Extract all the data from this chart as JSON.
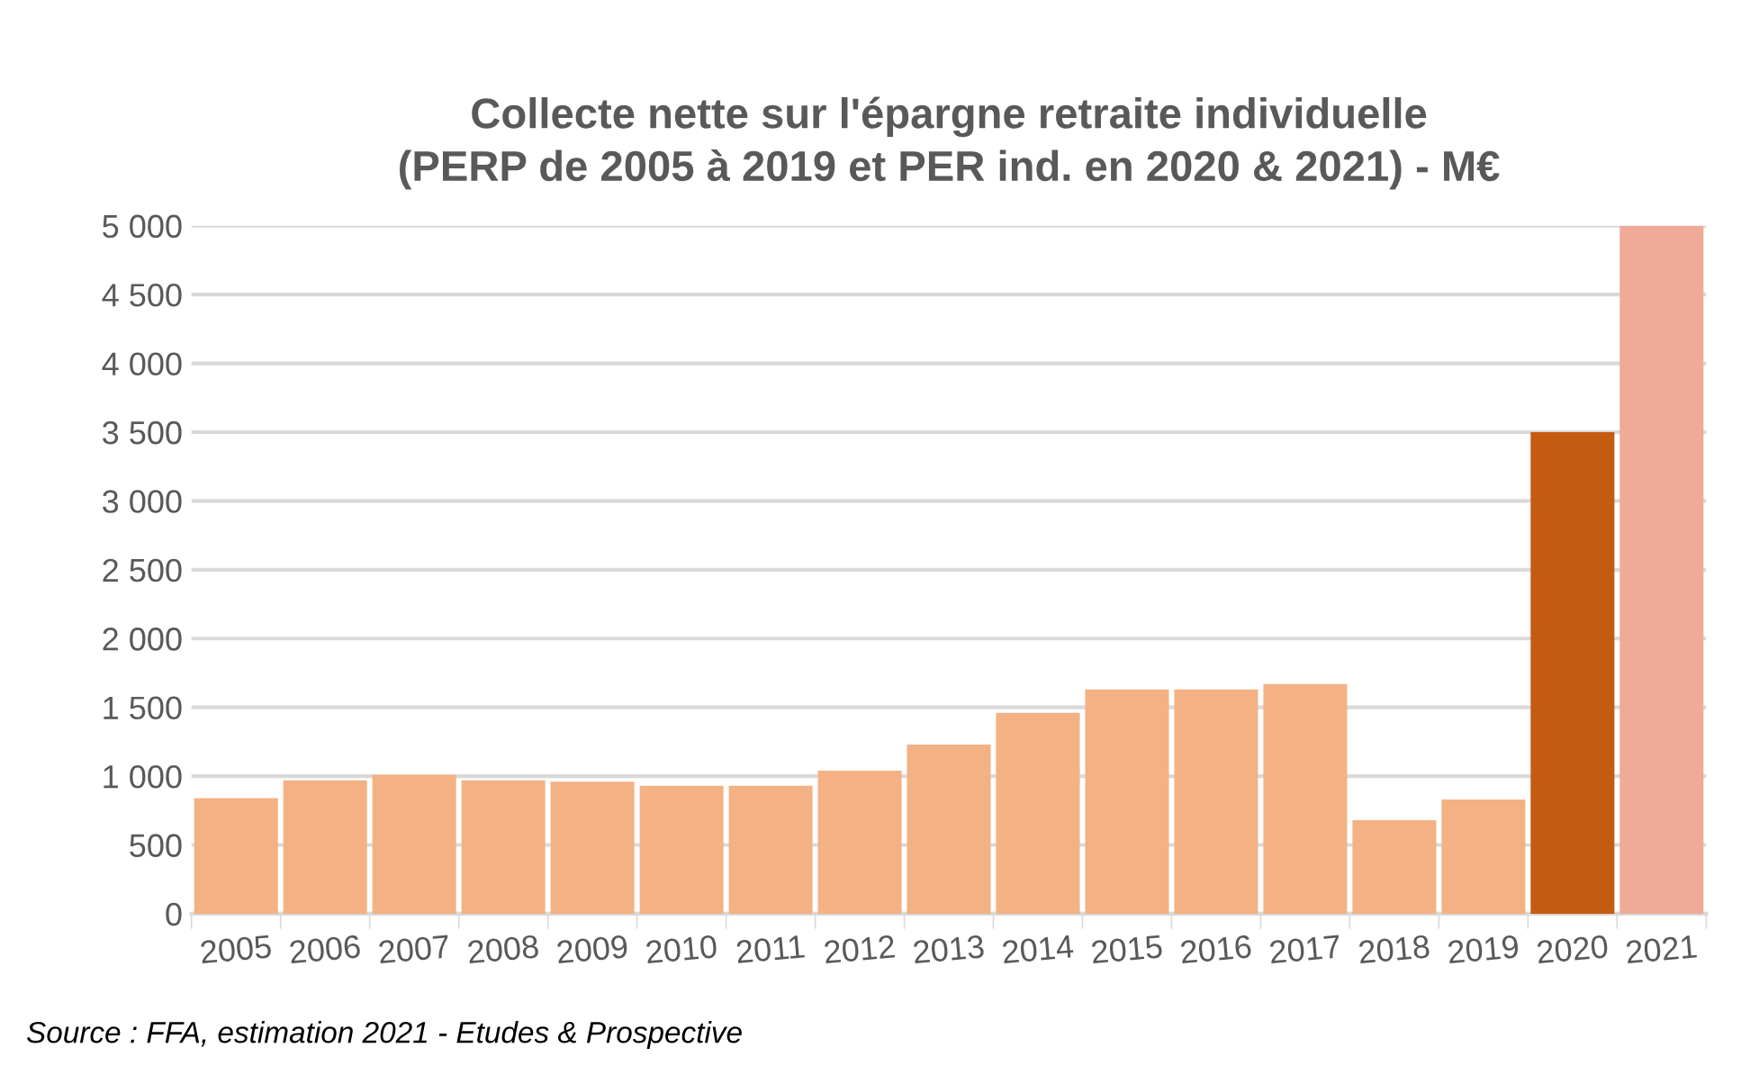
{
  "chart_data": {
    "type": "bar",
    "title": "Collecte nette sur l'épargne retraite individuelle\n(PERP de 2005 à 2019 et PER ind. en 2020 & 2021) - M€",
    "categories": [
      "2005",
      "2006",
      "2007",
      "2008",
      "2009",
      "2010",
      "2011",
      "2012",
      "2013",
      "2014",
      "2015",
      "2016",
      "2017",
      "2018",
      "2019",
      "2020",
      "2021"
    ],
    "values": [
      840,
      970,
      1010,
      970,
      960,
      930,
      930,
      1040,
      1230,
      1460,
      1630,
      1630,
      1670,
      680,
      830,
      3500,
      5000
    ],
    "colors": [
      "#f4b183",
      "#f4b183",
      "#f4b183",
      "#f4b183",
      "#f4b183",
      "#f4b183",
      "#f4b183",
      "#f4b183",
      "#f4b183",
      "#f4b183",
      "#f4b183",
      "#f4b183",
      "#f4b183",
      "#f4b183",
      "#f4b183",
      "#c55a11",
      "#efaa98"
    ],
    "ylim": [
      0,
      5000
    ],
    "yticks": [
      {
        "value": 0,
        "label": "0"
      },
      {
        "value": 500,
        "label": "500"
      },
      {
        "value": 1000,
        "label": "1 000"
      },
      {
        "value": 1500,
        "label": "1 500"
      },
      {
        "value": 2000,
        "label": "2 000"
      },
      {
        "value": 2500,
        "label": "2 500"
      },
      {
        "value": 3000,
        "label": "3 000"
      },
      {
        "value": 3500,
        "label": "3 500"
      },
      {
        "value": 4000,
        "label": "4 000"
      },
      {
        "value": 4500,
        "label": "4 500"
      },
      {
        "value": 5000,
        "label": "5 000"
      }
    ],
    "grid": "y",
    "annotations": [
      "Source : FFA, estimation 2021 - Etudes & Prospective"
    ]
  }
}
